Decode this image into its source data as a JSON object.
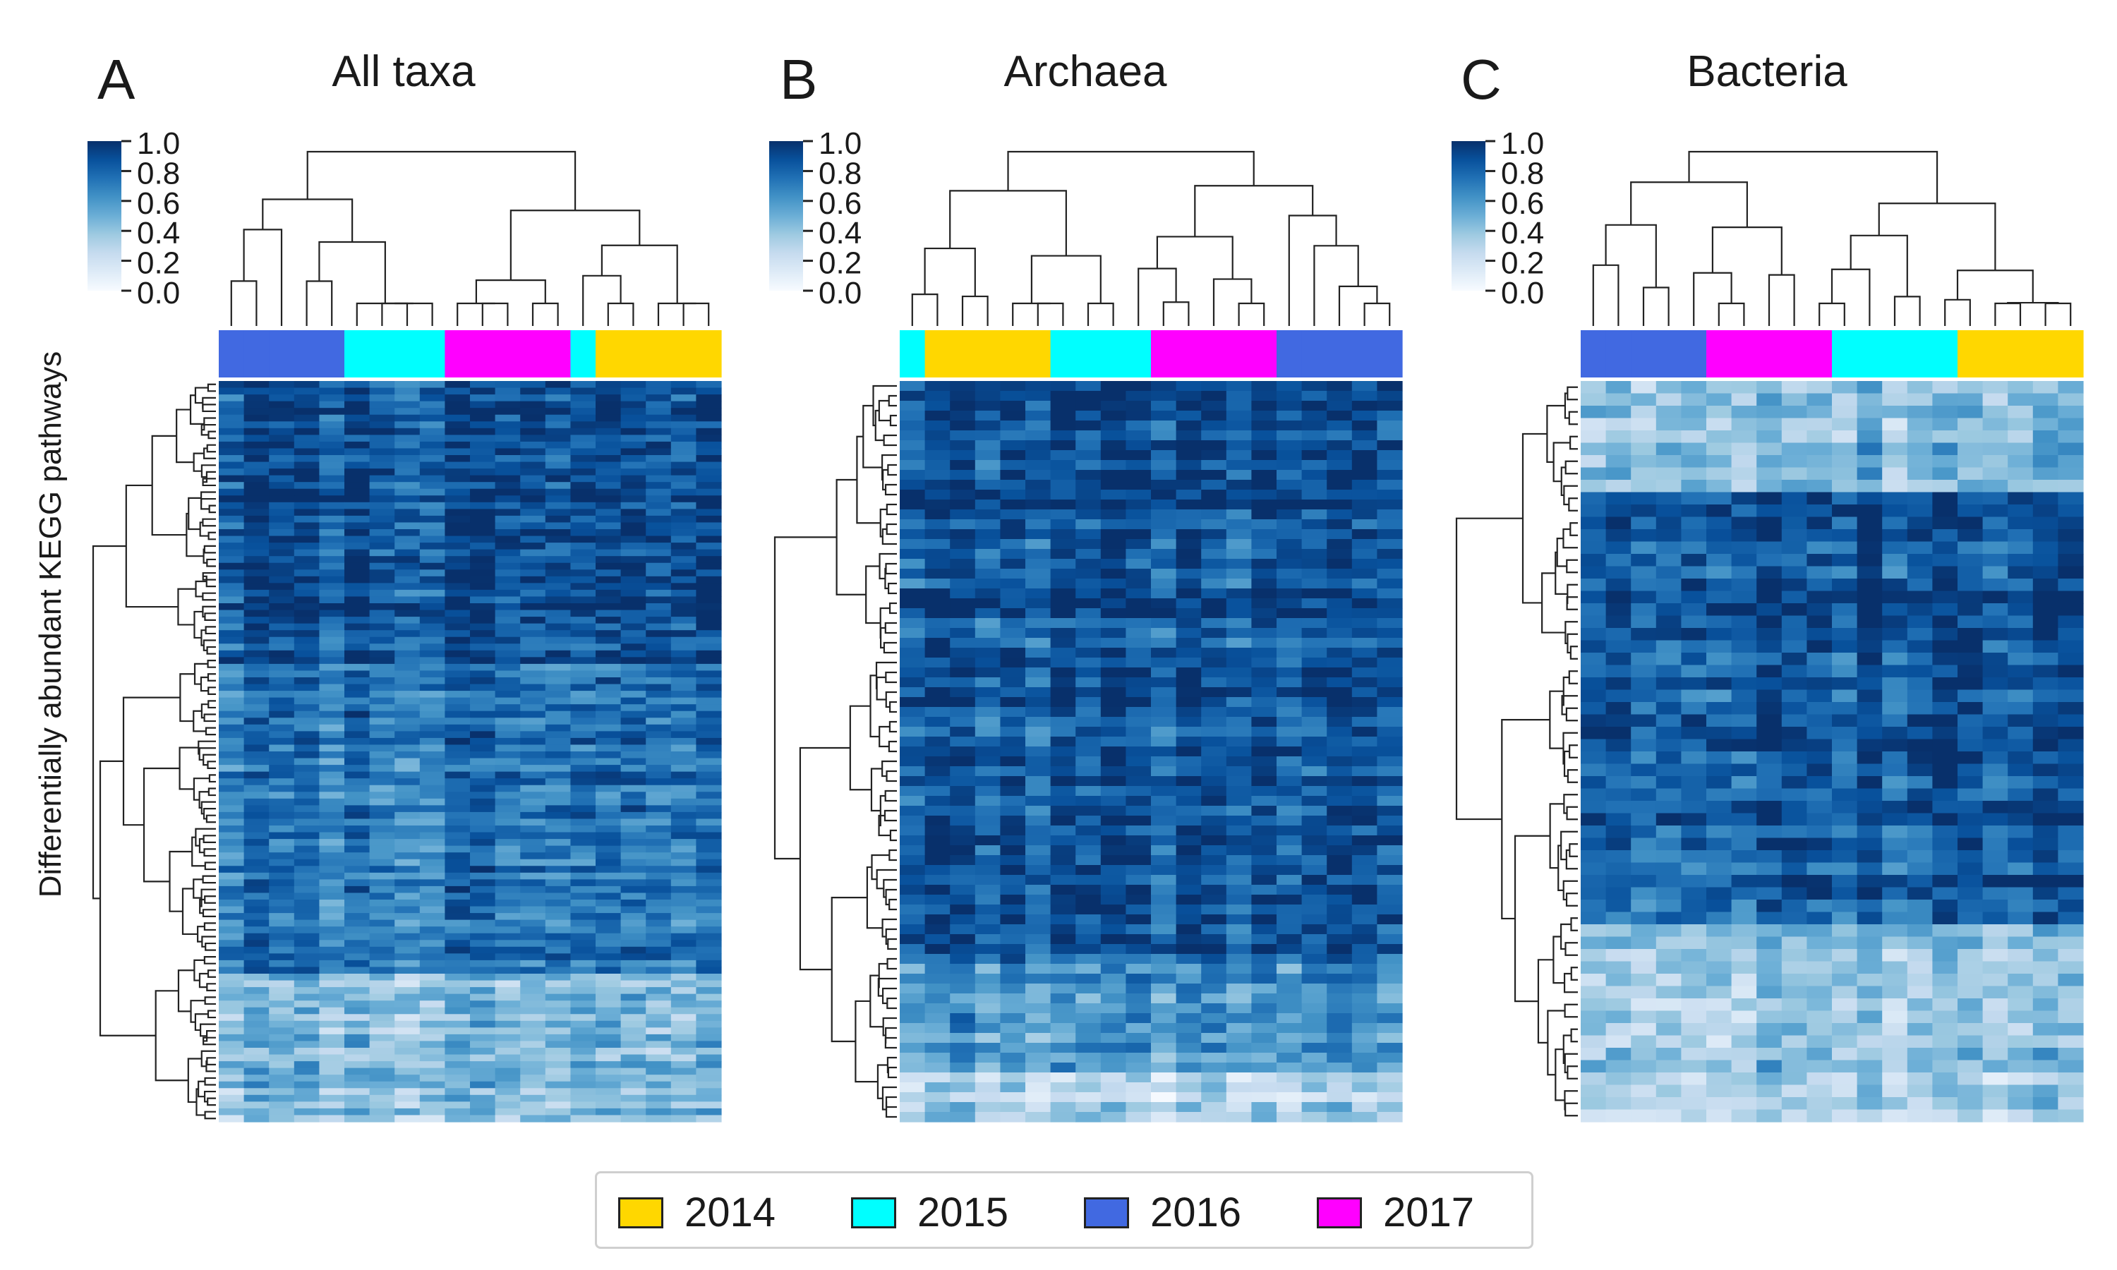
{
  "chart_data": [
    {
      "type": "heatmap",
      "panel_letter": "A",
      "title": "All taxa",
      "ylabel": "Differentially abundant KEGG pathways",
      "colorbar": {
        "ticks": [
          "1.0",
          "0.8",
          "0.6",
          "0.4",
          "0.2",
          "0.0"
        ],
        "range": [
          0,
          1
        ]
      },
      "column_years": [
        2016,
        2016,
        2016,
        2016,
        2016,
        2015,
        2015,
        2015,
        2015,
        2017,
        2017,
        2017,
        2017,
        2017,
        2015,
        2014,
        2014,
        2014,
        2014,
        2014
      ],
      "n_rows": 110
    },
    {
      "type": "heatmap",
      "panel_letter": "B",
      "title": "Archaea",
      "ylabel": "",
      "colorbar": {
        "ticks": [
          "1.0",
          "0.8",
          "0.6",
          "0.4",
          "0.2",
          "0.0"
        ],
        "range": [
          0,
          1
        ]
      },
      "column_years": [
        2015,
        2014,
        2014,
        2014,
        2014,
        2014,
        2015,
        2015,
        2015,
        2015,
        2017,
        2017,
        2017,
        2017,
        2017,
        2016,
        2016,
        2016,
        2016,
        2016
      ],
      "n_rows": 75
    },
    {
      "type": "heatmap",
      "panel_letter": "C",
      "title": "Bacteria",
      "ylabel": "",
      "colorbar": {
        "ticks": [
          "1.0",
          "0.8",
          "0.6",
          "0.4",
          "0.2",
          "0.0"
        ],
        "range": [
          0,
          1
        ]
      },
      "column_years": [
        2016,
        2016,
        2016,
        2016,
        2016,
        2017,
        2017,
        2017,
        2017,
        2017,
        2015,
        2015,
        2015,
        2015,
        2015,
        2014,
        2014,
        2014,
        2014,
        2014
      ],
      "n_rows": 60
    }
  ],
  "legend": {
    "items": [
      {
        "label": "2014",
        "color": "#FFD700"
      },
      {
        "label": "2015",
        "color": "#00FFFF"
      },
      {
        "label": "2016",
        "color": "#4169E1"
      },
      {
        "label": "2017",
        "color": "#FF00FF"
      }
    ]
  },
  "colormap": {
    "low": "#f7fbff",
    "mid": "#4292c6",
    "high": "#08306b"
  }
}
